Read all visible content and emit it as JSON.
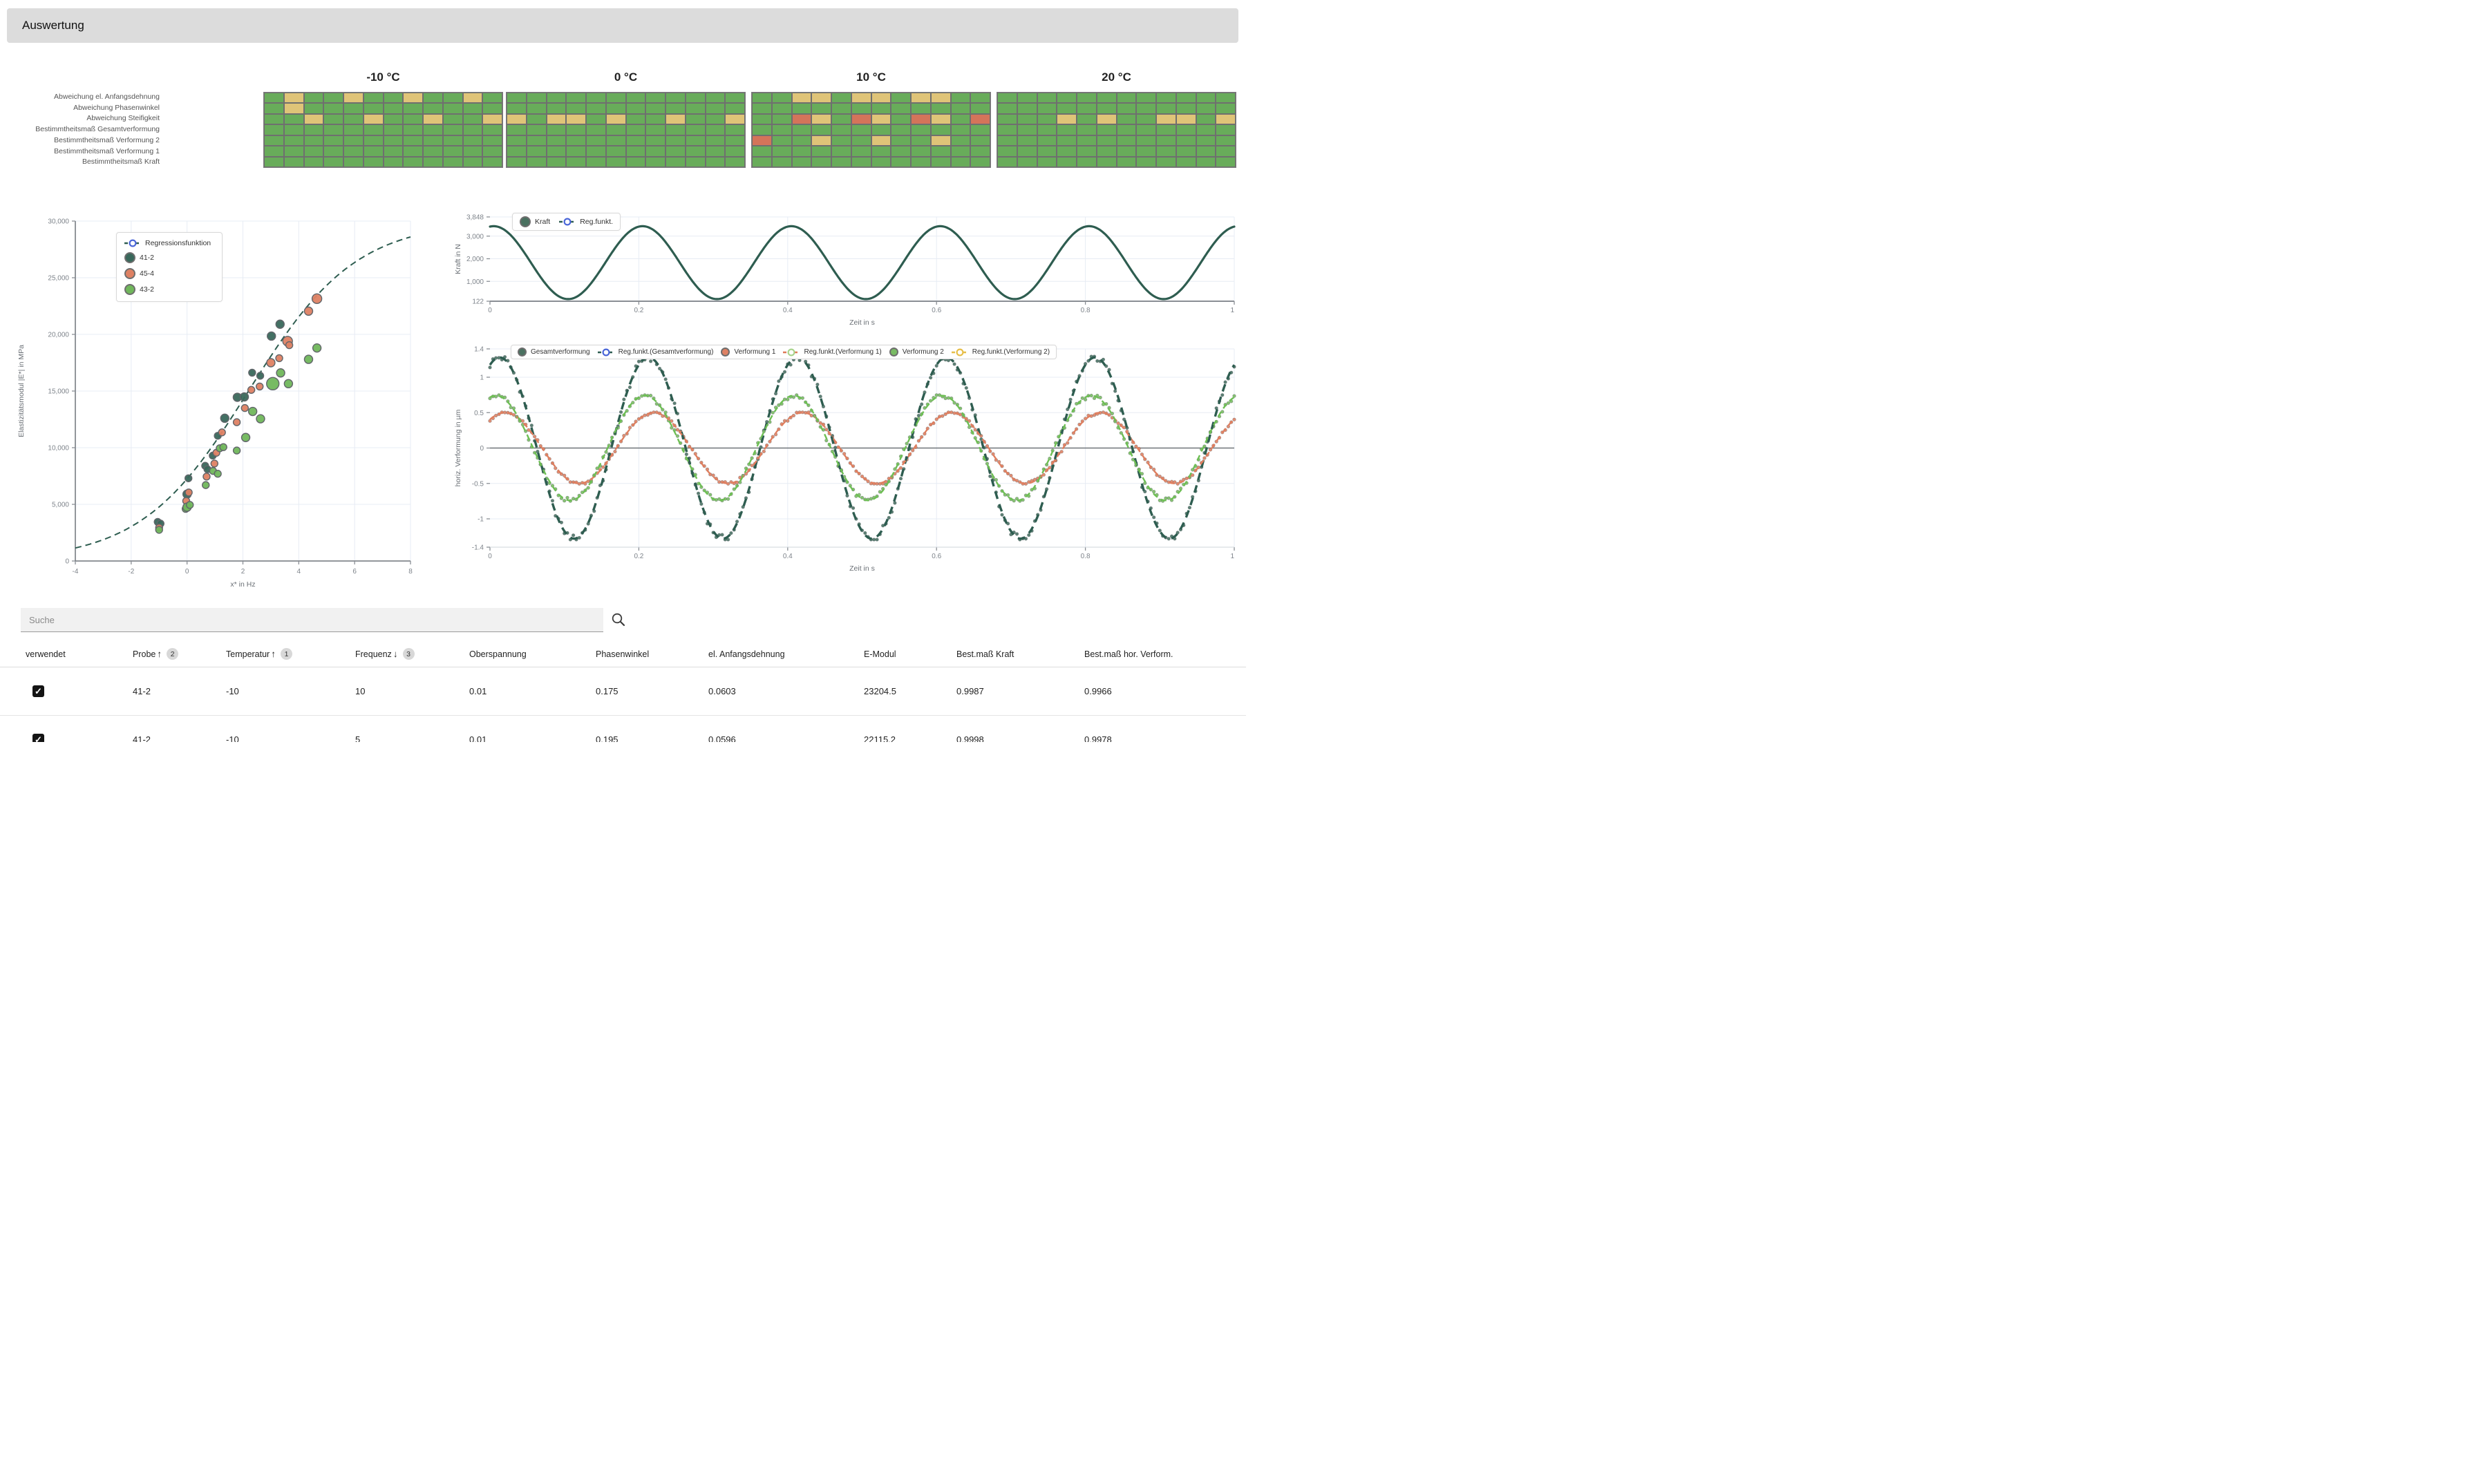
{
  "header": {
    "title": "Auswertung"
  },
  "heatmaps": {
    "row_labels": [
      "Abweichung el. Anfangsdehnung",
      "Abweichung Phasenwinkel",
      "Abweichung Steifigkeit",
      "Bestimmtheitsmaß Gesamtverformung",
      "Bestimmtheitsmaß Verformung 2",
      "Bestimmtheitsmaß Verformung 1",
      "Bestimmtheitsmaß Kraft"
    ],
    "colors": {
      "g": "#68ac5a",
      "y": "#dfc478",
      "r": "#d4745a",
      "grid": "#6f6f6f"
    },
    "groups": [
      {
        "title": "-10 °C",
        "rows": [
          "gyggyggyggyg",
          "gygggggggggg",
          "ggyggyggyggy",
          "gggggggggggg",
          "gggggggggggg",
          "gggggggggggg",
          "gggggggggggg"
        ]
      },
      {
        "title": "0 °C",
        "rows": [
          "gggggggggggg",
          "gggggggggggg",
          "ygyygyggyggy",
          "gggggggggggg",
          "gggggggggggg",
          "gggggggggggg",
          "gggggggggggg"
        ]
      },
      {
        "title": "10 °C",
        "rows": [
          "ggyygyygyygg",
          "gggggggggggg",
          "ggrygrygrygr",
          "gggggggggggg",
          "rggyggyggygg",
          "gggggggggggg",
          "gggggggggggg"
        ]
      },
      {
        "title": "20 °C",
        "rows": [
          "gggggggggggg",
          "gggggggggggg",
          "gggygyggyygy",
          "gggggggggggg",
          "gggggggggggg",
          "gggggggggggg",
          "gggggggggggg"
        ]
      }
    ]
  },
  "chart_data": [
    {
      "type": "scatter",
      "name": "emodul-scatter",
      "xlabel": "x* in Hz",
      "ylabel": "Elastizitätsmodul |E*| in MPa",
      "xlim": [
        -4,
        8
      ],
      "xticks": [
        {
          "v": -4,
          "label": "-4"
        },
        {
          "v": -2,
          "label": "-2"
        },
        {
          "v": 0,
          "label": "0"
        },
        {
          "v": 2,
          "label": "2"
        },
        {
          "v": 4,
          "label": "4"
        },
        {
          "v": 6,
          "label": "6"
        },
        {
          "v": 8,
          "label": "8"
        }
      ],
      "ylim": [
        0,
        30000
      ],
      "yticks": [
        {
          "v": 0,
          "label": "0"
        },
        {
          "v": 5000,
          "label": "5,000"
        },
        {
          "v": 10000,
          "label": "10,000"
        },
        {
          "v": 15000,
          "label": "15,000"
        },
        {
          "v": 20000,
          "label": "20,000"
        },
        {
          "v": 25000,
          "label": "25,000"
        },
        {
          "v": 30000,
          "label": "30,000"
        }
      ],
      "legend": [
        {
          "label": "Regressionsfunktion",
          "type": "ringline",
          "ring": "#4a66d8",
          "line": "#2e5d50"
        },
        {
          "label": "41-2",
          "type": "dot",
          "color": "#39685b"
        },
        {
          "label": "45-4",
          "type": "dot",
          "color": "#de8163"
        },
        {
          "label": "43-2",
          "type": "dot",
          "color": "#70b75b"
        }
      ],
      "regression": {
        "shape": "logistic",
        "L": 30000,
        "k": 0.52,
        "x0": 2.2,
        "color": "#2e5d50"
      },
      "series": [
        {
          "name": "41-2",
          "color": "#39685b",
          "points": [
            [
              -1.05,
              3450,
              5
            ],
            [
              -0.95,
              3300,
              5
            ],
            [
              0,
              5900,
              6
            ],
            [
              0.05,
              7300,
              5
            ],
            [
              0.65,
              8400,
              5
            ],
            [
              0.73,
              8100,
              5
            ],
            [
              0.92,
              9300,
              5
            ],
            [
              1.1,
              11050,
              5
            ],
            [
              1.35,
              12600,
              6
            ],
            [
              1.8,
              14450,
              6
            ],
            [
              2.05,
              14480,
              6
            ],
            [
              2.33,
              16620,
              5
            ],
            [
              2.62,
              16350,
              5
            ],
            [
              3.02,
              19850,
              6
            ],
            [
              3.33,
              20900,
              6
            ]
          ]
        },
        {
          "name": "45-4",
          "color": "#de8163",
          "points": [
            [
              -1,
              2950,
              5
            ],
            [
              -0.03,
              5300,
              5
            ],
            [
              0.06,
              6050,
              5
            ],
            [
              0.7,
              7450,
              5
            ],
            [
              0.98,
              8600,
              5
            ],
            [
              1.05,
              9550,
              5
            ],
            [
              1.25,
              11350,
              5
            ],
            [
              1.78,
              12250,
              5
            ],
            [
              2.07,
              13500,
              5
            ],
            [
              2.3,
              15100,
              5
            ],
            [
              2.6,
              15400,
              5
            ],
            [
              3,
              17500,
              6
            ],
            [
              3.3,
              17900,
              5
            ],
            [
              3.6,
              19400,
              7
            ],
            [
              3.66,
              19050,
              5
            ],
            [
              4.35,
              22050,
              6
            ],
            [
              4.65,
              23150,
              7
            ]
          ]
        },
        {
          "name": "43-2",
          "color": "#70b75b",
          "points": [
            [
              -1,
              2750,
              5
            ],
            [
              -0.05,
              4600,
              5
            ],
            [
              0,
              4750,
              6
            ],
            [
              0.1,
              4950,
              5
            ],
            [
              0.67,
              6700,
              5
            ],
            [
              0.93,
              7950,
              5
            ],
            [
              1.1,
              7700,
              5
            ],
            [
              1.17,
              9950,
              5
            ],
            [
              1.3,
              10050,
              5
            ],
            [
              1.78,
              9750,
              5
            ],
            [
              2.1,
              10900,
              6
            ],
            [
              2.35,
              13200,
              6
            ],
            [
              2.63,
              12550,
              6
            ],
            [
              3.07,
              15650,
              9
            ],
            [
              3.35,
              16600,
              6
            ],
            [
              3.63,
              15650,
              6
            ],
            [
              4.35,
              17800,
              6
            ],
            [
              4.65,
              18800,
              6
            ]
          ]
        }
      ]
    },
    {
      "type": "line",
      "name": "kraft-chart",
      "xlabel": "Zeit in s",
      "ylabel": "Kraft in N",
      "xlim": [
        0,
        1
      ],
      "xticks": [
        {
          "v": 0,
          "label": "0"
        },
        {
          "v": 0.2,
          "label": "0.2"
        },
        {
          "v": 0.4,
          "label": "0.4"
        },
        {
          "v": 0.6,
          "label": "0.6"
        },
        {
          "v": 0.8,
          "label": "0.8"
        },
        {
          "v": 1,
          "label": "1"
        }
      ],
      "ylim": [
        122,
        3848
      ],
      "yticks": [
        {
          "v": 122,
          "label": "122"
        },
        {
          "v": 1000,
          "label": "1,000"
        },
        {
          "v": 2000,
          "label": "2,000"
        },
        {
          "v": 3000,
          "label": "3,000"
        },
        {
          "v": 3848,
          "label": "3,848"
        }
      ],
      "legend": [
        {
          "label": "Kraft",
          "type": "dot",
          "color": "#49705f"
        },
        {
          "label": "Reg.funkt.",
          "type": "ringline",
          "ring": "#4a66d8",
          "line": "#2e5d50"
        }
      ],
      "series": [
        {
          "name": "Kraft",
          "mean": 1828,
          "amp": 1612,
          "freq": 5,
          "phase": 0.005,
          "color": "#2e5d50",
          "width": 3.2
        }
      ]
    },
    {
      "type": "line-scatter",
      "name": "verformung-chart",
      "xlabel": "Zeit in s",
      "ylabel": "horiz. Verformung in µm",
      "xlim": [
        0,
        1
      ],
      "xticks": [
        {
          "v": 0,
          "label": "0"
        },
        {
          "v": 0.2,
          "label": "0.2"
        },
        {
          "v": 0.4,
          "label": "0.4"
        },
        {
          "v": 0.6,
          "label": "0.6"
        },
        {
          "v": 0.8,
          "label": "0.8"
        },
        {
          "v": 1,
          "label": "1"
        }
      ],
      "ylim": [
        -1.4,
        1.4
      ],
      "yticks": [
        {
          "v": 1.4,
          "label": "1.4"
        },
        {
          "v": 1,
          "label": "1"
        },
        {
          "v": 0.5,
          "label": "0.5"
        },
        {
          "v": 0,
          "label": "0"
        },
        {
          "v": -0.5,
          "label": "-0.5"
        },
        {
          "v": -1,
          "label": "-1"
        },
        {
          "v": -1.4,
          "label": "-1.4"
        }
      ],
      "legend": [
        {
          "label": "Gesamtverformung",
          "type": "dot",
          "color": "#49705f"
        },
        {
          "label": "Reg.funkt.(Gesamtverformung)",
          "type": "ringline",
          "ring": "#4a66d8",
          "line": "#2e5d50"
        },
        {
          "label": "Verformung 1",
          "type": "dot",
          "color": "#de8163"
        },
        {
          "label": "Reg.funkt.(Verformung 1)",
          "type": "ringline",
          "ring": "#a8d48c",
          "line": "#de7a58"
        },
        {
          "label": "Verformung 2",
          "type": "dot",
          "color": "#79bb63"
        },
        {
          "label": "Reg.funkt.(Verformung 2)",
          "type": "ringline",
          "ring": "#e6be49",
          "line": "#e6be49"
        }
      ],
      "series": [
        {
          "name": "Gesamtverformung",
          "amp": 1.28,
          "freq": 5,
          "phase": 0.013,
          "dot_color": "#4a7265",
          "line_color": "#2e5d50",
          "dash": "11 8",
          "line_width": 3.4
        },
        {
          "name": "Verformung 1",
          "amp": 0.5,
          "freq": 5,
          "phase": 0.02,
          "dot_color": "#de8163",
          "line_color": "#df7e5e",
          "dash": "8 6",
          "line_width": 2.4
        },
        {
          "name": "Verformung 2",
          "amp": 0.74,
          "freq": 5,
          "phase": 0.008,
          "dot_color": "#79bb63",
          "line_color": "#6dbf53",
          "dash": "8 6",
          "line_width": 2.4
        }
      ]
    }
  ],
  "search": {
    "placeholder": "Suche"
  },
  "table": {
    "columns": [
      {
        "label": "verwendet"
      },
      {
        "label": "Probe",
        "sort": "asc",
        "badge": "2"
      },
      {
        "label": "Temperatur",
        "sort": "asc",
        "badge": "1"
      },
      {
        "label": "Frequenz",
        "sort": "desc",
        "badge": "3"
      },
      {
        "label": "Oberspannung"
      },
      {
        "label": "Phasenwinkel"
      },
      {
        "label": "el. Anfangsdehnung"
      },
      {
        "label": "E-Modul"
      },
      {
        "label": "Best.maß Kraft"
      },
      {
        "label": "Best.maß hor. Verform."
      }
    ],
    "rows": [
      {
        "used": true,
        "values": [
          "41-2",
          "-10",
          "10",
          "0.01",
          "0.175",
          "0.0603",
          "23204.5",
          "0.9987",
          "0.9966"
        ]
      },
      {
        "used": true,
        "values": [
          "41-2",
          "-10",
          "5",
          "0.01",
          "0.195",
          "0.0596",
          "22115.2",
          "0.9998",
          "0.9978"
        ]
      }
    ]
  }
}
